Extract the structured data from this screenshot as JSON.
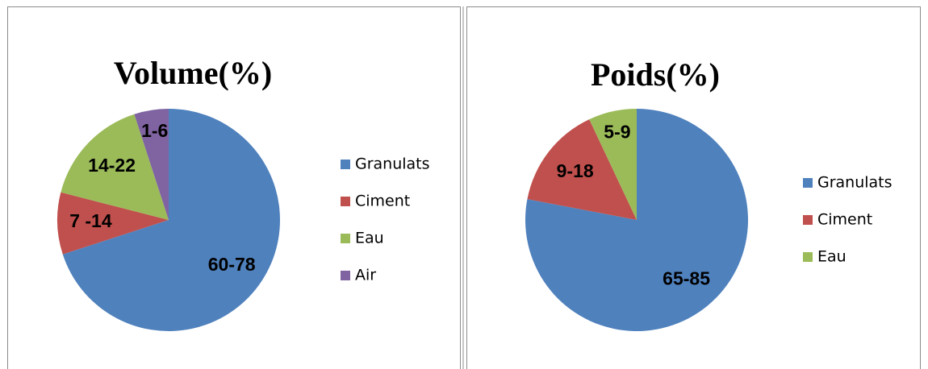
{
  "chart_data": [
    {
      "type": "pie",
      "title": "Volume(%)",
      "categories": [
        "Granulats",
        "Ciment",
        "Eau",
        "Air"
      ],
      "values": [
        70,
        9,
        16,
        5
      ],
      "value_labels": [
        "60-78",
        "7 -14",
        "14-22",
        "1-6"
      ],
      "colors": [
        "#4f81bd",
        "#c0504d",
        "#9bbb59",
        "#8064a2"
      ],
      "legend": "right"
    },
    {
      "type": "pie",
      "title": "Poids(%)",
      "categories": [
        "Granulats",
        "Ciment",
        "Eau"
      ],
      "values": [
        78,
        15,
        7
      ],
      "value_labels": [
        "65-85",
        "9-18",
        "5-9"
      ],
      "colors": [
        "#4f81bd",
        "#c0504d",
        "#9bbb59"
      ],
      "legend": "right"
    }
  ]
}
